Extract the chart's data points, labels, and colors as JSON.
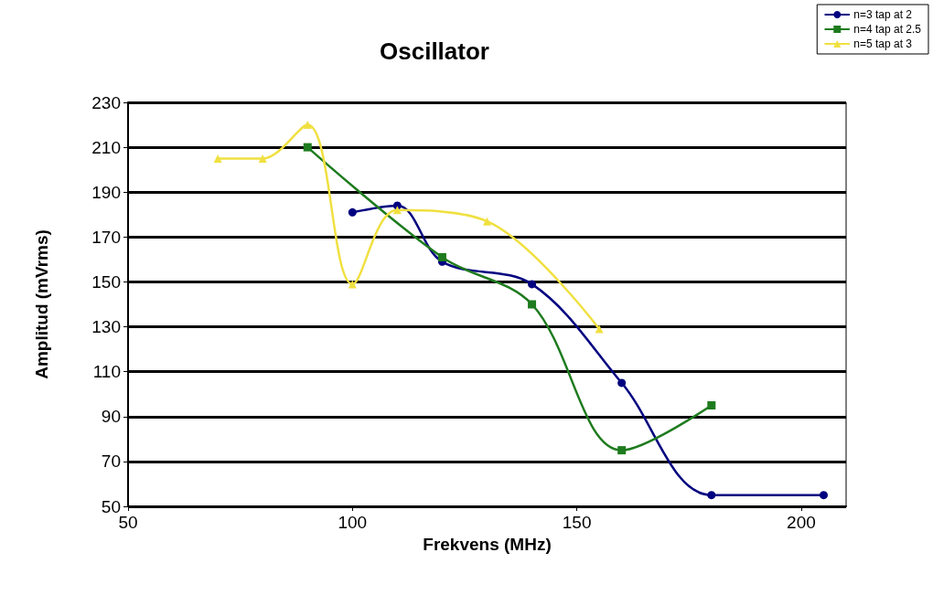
{
  "chart_data": {
    "type": "line",
    "title": "Oscillator",
    "xlabel": "Frekvens (MHz)",
    "ylabel": "Amplitud (mVrms)",
    "xlim": [
      50,
      210
    ],
    "xticks": [
      50,
      100,
      150,
      200
    ],
    "ylim": [
      50,
      230
    ],
    "yticks": [
      50,
      70,
      90,
      110,
      130,
      150,
      170,
      190,
      210,
      230
    ],
    "grid": "y",
    "legend": "top right",
    "line_style": "solid",
    "series": [
      {
        "name": "n=3 tap at 2",
        "color": "#000080",
        "marker": "circle",
        "x": [
          100,
          110,
          120,
          140,
          160,
          180,
          205
        ],
        "values": [
          181,
          184,
          159,
          149,
          105,
          55,
          55
        ]
      },
      {
        "name": "n=4 tap at 2.5",
        "color": "#1e7b1e",
        "marker": "square",
        "x": [
          90,
          120,
          140,
          160,
          180
        ],
        "values": [
          210,
          161,
          140,
          75,
          95
        ]
      },
      {
        "name": "n=5 tap at 3",
        "color": "#f0e040",
        "marker": "triangle",
        "x": [
          70,
          80,
          90,
          100,
          110,
          130,
          155
        ],
        "values": [
          205,
          205,
          220,
          149,
          182,
          177,
          129
        ]
      }
    ]
  }
}
